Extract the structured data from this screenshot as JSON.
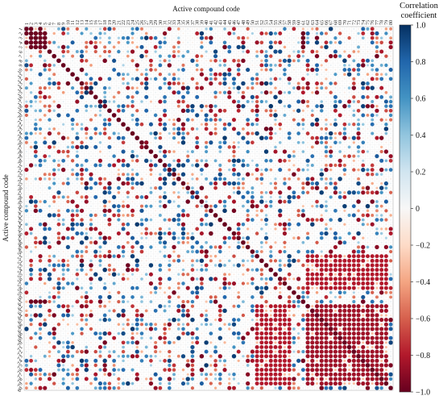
{
  "chart_data": {
    "type": "heatmap",
    "marker": "circle",
    "n": 80,
    "xlabel": "Active compound code",
    "ylabel": "Active compound code",
    "categories": [
      "1",
      "2",
      "3",
      "4",
      "5",
      "6",
      "7",
      "8",
      "9",
      "10",
      "11",
      "12",
      "13",
      "14",
      "15",
      "16",
      "17",
      "18",
      "19",
      "20",
      "21",
      "22",
      "23",
      "24",
      "25",
      "26",
      "27",
      "28",
      "29",
      "30",
      "31",
      "32",
      "33",
      "34",
      "35",
      "36",
      "37",
      "38",
      "39",
      "40",
      "41",
      "42",
      "43",
      "44",
      "45",
      "46",
      "47",
      "48",
      "49",
      "50",
      "51",
      "52",
      "53",
      "54",
      "55",
      "56",
      "57",
      "58",
      "59",
      "60",
      "61",
      "62",
      "63",
      "64",
      "65",
      "66",
      "67",
      "68",
      "69",
      "70",
      "71",
      "72",
      "73",
      "74",
      "75",
      "76",
      "77",
      "78",
      "79",
      "80"
    ],
    "colorbar": {
      "title_lines": [
        "Correlation",
        "coefficient"
      ],
      "ticks": [
        "1.0",
        "0.8",
        "0.6",
        "0.4",
        "0.2",
        "0",
        "−0.2",
        "−0.4",
        "−0.6",
        "−0.8",
        "−1.0"
      ],
      "tick_values": [
        1.0,
        0.8,
        0.6,
        0.4,
        0.2,
        0,
        -0.2,
        -0.4,
        -0.6,
        -0.8,
        -1.0
      ],
      "range": [
        -1.0,
        1.0
      ],
      "colormap": "RdBu",
      "colors": [
        "#67001f",
        "#b2182b",
        "#d6604d",
        "#f4a582",
        "#fddbc7",
        "#f7f7f7",
        "#d1e5f0",
        "#92c5de",
        "#4393c3",
        "#2166ac",
        "#053061"
      ]
    },
    "blocks": [
      {
        "rows": [
          1,
          5
        ],
        "cols": [
          1,
          5
        ],
        "value": 0.98
      },
      {
        "rows": [
          1,
          5
        ],
        "cols": [
          61,
          61
        ],
        "value": 0.98
      },
      {
        "rows": [
          61,
          61
        ],
        "cols": [
          1,
          5
        ],
        "value": 0.98
      },
      {
        "rows": [
          62,
          79
        ],
        "cols": [
          62,
          79
        ],
        "value": 0.85
      },
      {
        "rows": [
          51,
          58
        ],
        "cols": [
          62,
          79
        ],
        "value": 0.8
      },
      {
        "rows": [
          62,
          79
        ],
        "cols": [
          51,
          58
        ],
        "value": 0.8
      }
    ]
  }
}
